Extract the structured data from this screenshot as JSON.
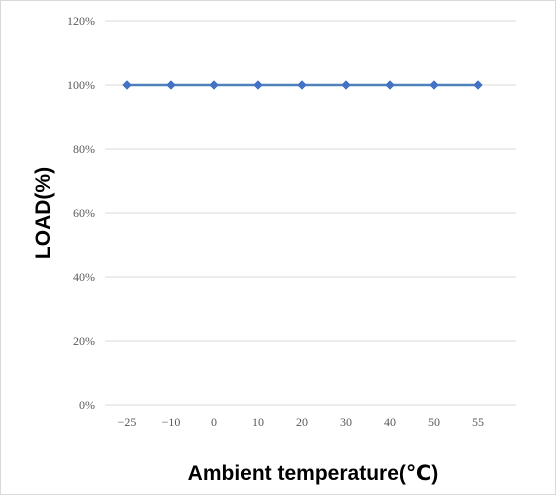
{
  "chart_data": {
    "type": "line",
    "categories": [
      "-25",
      "-10",
      "0",
      "10",
      "20",
      "30",
      "40",
      "50",
      "55"
    ],
    "series": [
      {
        "values": [
          100,
          100,
          100,
          100,
          100,
          100,
          100,
          100,
          100
        ]
      }
    ],
    "xlabel": "Ambient temperature(℃)",
    "ylabel": "LOAD(%)",
    "ylim": [
      0,
      120
    ],
    "yticks": [
      "0%",
      "20%",
      "40%",
      "60%",
      "80%",
      "100%",
      "120%"
    ],
    "grid": true,
    "legend": "none",
    "colors": {
      "series": "#4f81bd",
      "marker": "#4472c4",
      "grid": "#d9d9d9"
    }
  }
}
